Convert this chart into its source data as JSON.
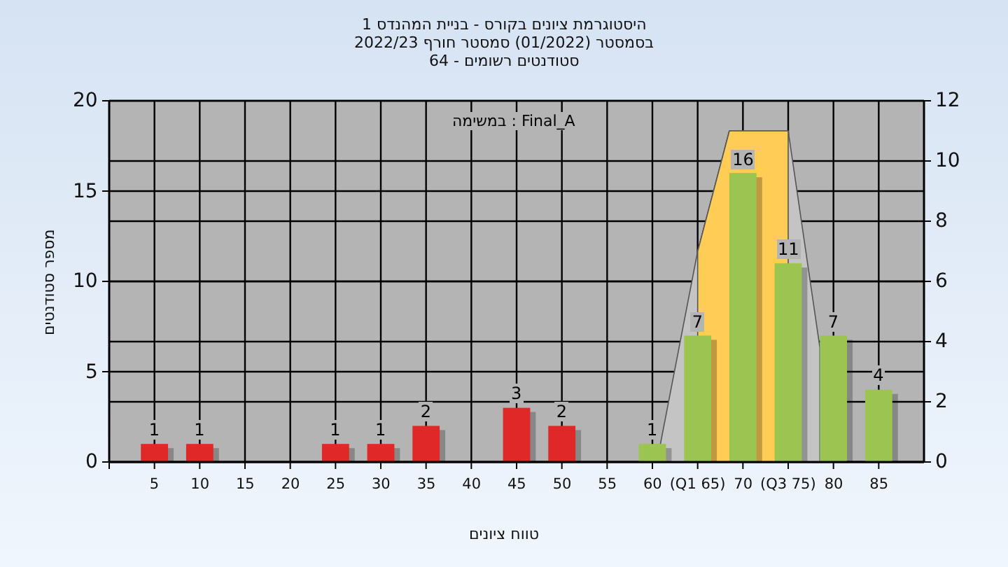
{
  "chart_data": {
    "type": "bar",
    "title": "היסטוגרמת ציונים בקורס - בניית המהנדס 1",
    "subtitle": "בסמסטר (01/2022) סמסטר חורף 2022/23\nסטודנטים רשומים - 64",
    "xlabel": "טווח ציונים",
    "ylabel": "מספר סטודנטים",
    "annotations": [
      "במשימה : Final_A"
    ],
    "xlim": [
      0,
      90
    ],
    "xticks": [
      5,
      10,
      15,
      20,
      25,
      30,
      35,
      40,
      45,
      50,
      55,
      60,
      {
        "value": 65,
        "label": "(Q1 65)"
      },
      70,
      {
        "value": 75,
        "label": "(Q3 75)"
      },
      80,
      85
    ],
    "ylim": [
      0,
      20
    ],
    "yticks": [
      0,
      5,
      10,
      15,
      20
    ],
    "y2lim": [
      0,
      12
    ],
    "y2ticks": [
      0,
      2,
      4,
      6,
      8,
      10,
      12
    ],
    "grid": true,
    "series": [
      {
        "type": "area",
        "axis": "y2",
        "color": "#c4c4c4",
        "x": [
          60.5,
          65,
          68.5,
          75,
          78.5
        ],
        "values": [
          0,
          7,
          11,
          11,
          3.8
        ]
      },
      {
        "type": "area",
        "axis": "y2",
        "color": "#ffcc55",
        "x": [
          65,
          68.5,
          75
        ],
        "values": [
          7,
          11,
          11
        ]
      },
      {
        "x": [
          5,
          10,
          25,
          30,
          35,
          45,
          50,
          60,
          65,
          70,
          75,
          80,
          85
        ],
        "values": [
          1,
          1,
          1,
          1,
          2,
          3,
          2,
          1,
          7,
          16,
          11,
          7,
          4
        ],
        "value_labels": [
          "1",
          "1",
          "1",
          "1",
          "2",
          "3",
          "2",
          "1",
          "7",
          "16",
          "11",
          "7",
          "4"
        ],
        "colors": [
          "#e02828",
          "#e02828",
          "#e02828",
          "#e02828",
          "#e02828",
          "#e02828",
          "#e02828",
          "#9cc450",
          "#9cc450",
          "#9cc450",
          "#9cc450",
          "#9cc450",
          "#9cc450"
        ]
      }
    ]
  }
}
